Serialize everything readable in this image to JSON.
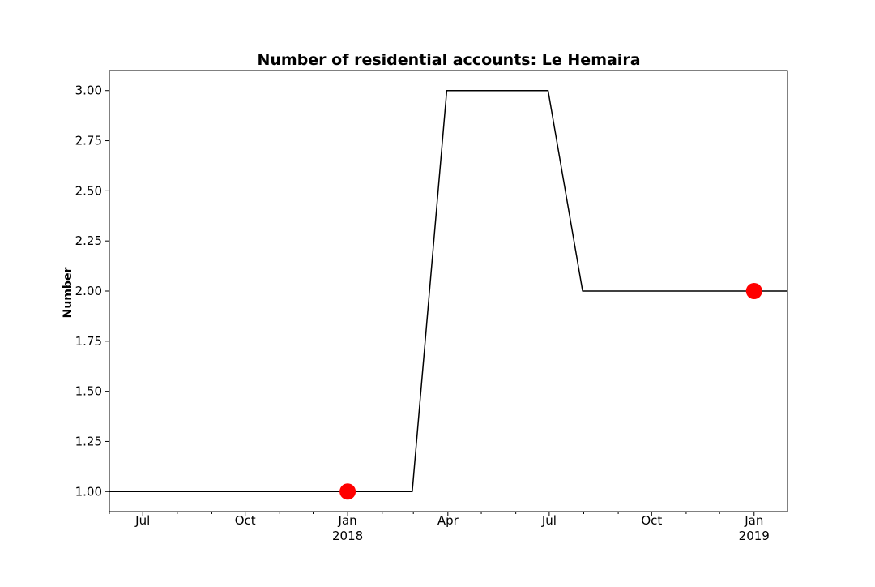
{
  "chart_data": {
    "type": "line",
    "title": "Number of residential accounts: Le Hemaira",
    "xlabel": "",
    "ylabel": "Number",
    "grid": false,
    "legend": "none",
    "xlim": [
      "2017-06-01",
      "2019-01-31"
    ],
    "ylim": [
      0.9,
      3.1
    ],
    "series": [
      {
        "color": "#000000",
        "points": [
          {
            "x": "2017-06-01",
            "y": 1.0
          },
          {
            "x": "2018-02-28",
            "y": 1.0
          },
          {
            "x": "2018-03-31",
            "y": 3.0
          },
          {
            "x": "2018-06-30",
            "y": 3.0
          },
          {
            "x": "2018-07-31",
            "y": 2.0
          },
          {
            "x": "2019-01-31",
            "y": 2.0
          }
        ]
      }
    ],
    "markers": {
      "color": "#ff0000",
      "points": [
        {
          "x": "2018-01-01",
          "y": 1.0
        },
        {
          "x": "2019-01-01",
          "y": 2.0
        }
      ]
    },
    "y_ticks": [
      {
        "value": 1.0,
        "label": "1.00"
      },
      {
        "value": 1.25,
        "label": "1.25"
      },
      {
        "value": 1.5,
        "label": "1.50"
      },
      {
        "value": 1.75,
        "label": "1.75"
      },
      {
        "value": 2.0,
        "label": "2.00"
      },
      {
        "value": 2.25,
        "label": "2.25"
      },
      {
        "value": 2.5,
        "label": "2.50"
      },
      {
        "value": 2.75,
        "label": "2.75"
      },
      {
        "value": 3.0,
        "label": "3.00"
      }
    ],
    "x_major_ticks": [
      {
        "date": "2017-07-01",
        "label": "Jul",
        "sublabel": ""
      },
      {
        "date": "2017-10-01",
        "label": "Oct",
        "sublabel": ""
      },
      {
        "date": "2018-01-01",
        "label": "Jan",
        "sublabel": "2018"
      },
      {
        "date": "2018-04-01",
        "label": "Apr",
        "sublabel": ""
      },
      {
        "date": "2018-07-01",
        "label": "Jul",
        "sublabel": ""
      },
      {
        "date": "2018-10-01",
        "label": "Oct",
        "sublabel": ""
      },
      {
        "date": "2019-01-01",
        "label": "Jan",
        "sublabel": "2019"
      }
    ],
    "x_minor_ticks": [
      "2017-06-01",
      "2017-08-01",
      "2017-09-01",
      "2017-11-01",
      "2017-12-01",
      "2018-02-01",
      "2018-03-01",
      "2018-05-01",
      "2018-06-01",
      "2018-08-01",
      "2018-09-01",
      "2018-11-01",
      "2018-12-01"
    ]
  }
}
